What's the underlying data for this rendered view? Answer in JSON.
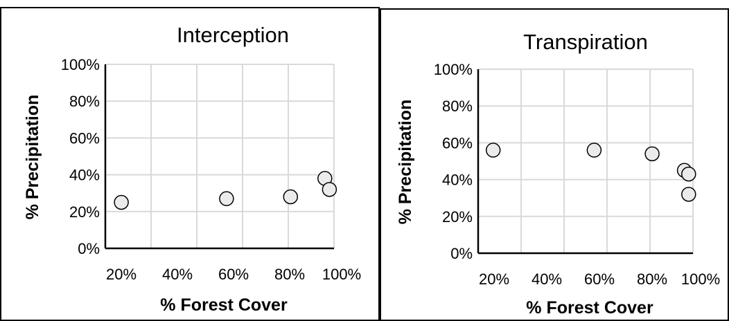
{
  "chart_data": [
    {
      "type": "scatter",
      "title": "Interception",
      "xlabel": "% Forest Cover",
      "ylabel": "% Precipitation",
      "xlim": [
        0,
        100
      ],
      "ylim": [
        0,
        100
      ],
      "x_ticks": [
        "20%",
        "40%",
        "60%",
        "80%",
        "100%"
      ],
      "y_ticks": [
        "0%",
        "20%",
        "40%",
        "60%",
        "80%",
        "100%"
      ],
      "grid": true,
      "points": [
        {
          "x": 7,
          "y": 25
        },
        {
          "x": 53,
          "y": 27
        },
        {
          "x": 81,
          "y": 28
        },
        {
          "x": 96,
          "y": 38
        },
        {
          "x": 98,
          "y": 32
        }
      ]
    },
    {
      "type": "scatter",
      "title": "Transpiration",
      "xlabel": "% Forest Cover",
      "ylabel": "% Precipitation",
      "xlim": [
        0,
        100
      ],
      "ylim": [
        0,
        100
      ],
      "x_ticks": [
        "20%",
        "40%",
        "60%",
        "80%",
        "100%"
      ],
      "y_ticks": [
        "0%",
        "20%",
        "40%",
        "60%",
        "80%",
        "100%"
      ],
      "grid": true,
      "points": [
        {
          "x": 7,
          "y": 56
        },
        {
          "x": 54,
          "y": 56
        },
        {
          "x": 81,
          "y": 54
        },
        {
          "x": 96,
          "y": 45
        },
        {
          "x": 98,
          "y": 43
        },
        {
          "x": 98,
          "y": 32
        }
      ]
    }
  ],
  "colors": {
    "marker_fill": "#ebebeb",
    "marker_stroke": "#000000",
    "grid": "#d9d9d9",
    "axis": "#000000",
    "border": "#000000"
  }
}
